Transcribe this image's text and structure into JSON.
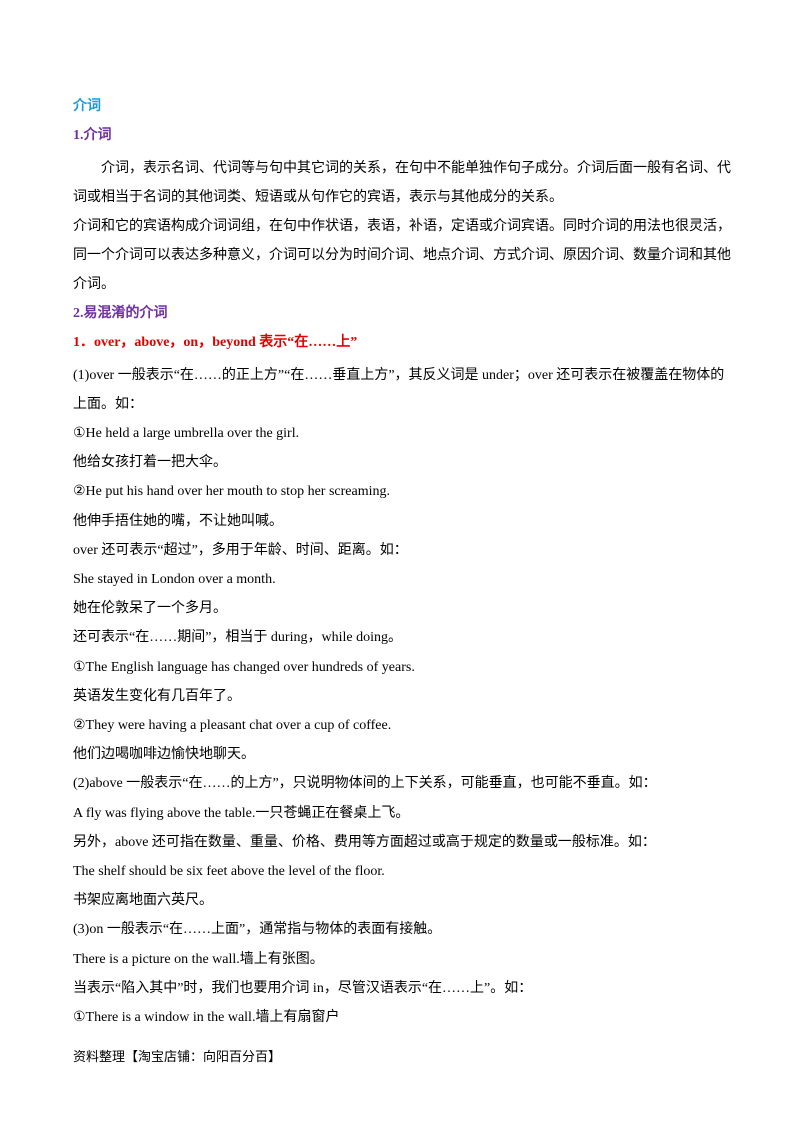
{
  "heading": "介词",
  "section1": {
    "title": "1.介词",
    "paragraphs": [
      "介词，表示名词、代词等与句中其它词的关系，在句中不能单独作句子成分。介词后面一般有名词、代词或相当于名词的其他词类、短语或从句作它的宾语，表示与其他成分的关系。",
      "介词和它的宾语构成介词词组，在句中作状语，表语，补语，定语或介词宾语。同时介词的用法也很灵活，同一个介词可以表达多种意义，介词可以分为时间介词、地点介词、方式介词、原因介词、数量介词和其他介词。"
    ]
  },
  "section2": {
    "title": "2.易混淆的介词",
    "subtitle": "1．over，above，on，beyond 表示“在……上”",
    "lines": [
      "(1)over 一般表示“在……的正上方”“在……垂直上方”，其反义词是 under；over 还可表示在被覆盖在物体的上面。如：",
      "①He held a large umbrella over the girl.",
      "他给女孩打着一把大伞。",
      "②He put his hand over her mouth to stop her screaming.",
      "他伸手捂住她的嘴，不让她叫喊。",
      "over 还可表示“超过”，多用于年龄、时间、距离。如：",
      "She stayed in London over a month.",
      "她在伦敦呆了一个多月。",
      "还可表示“在……期间”，相当于 during，while doing。",
      "①The English language has changed over hundreds of years.",
      "英语发生变化有几百年了。",
      "②They were having a pleasant chat over a cup of coffee.",
      "他们边喝咖啡边愉快地聊天。",
      "(2)above 一般表示“在……的上方”，只说明物体间的上下关系，可能垂直，也可能不垂直。如：",
      "A fly was flying above the table.一只苍蝇正在餐桌上飞。",
      "另外，above 还可指在数量、重量、价格、费用等方面超过或高于规定的数量或一般标准。如：",
      "The shelf should be six feet above the level of the floor.",
      "书架应离地面六英尺。",
      "(3)on 一般表示“在……上面”，通常指与物体的表面有接触。",
      "There is a picture on the wall.墙上有张图。",
      "当表示“陷入其中”时，我们也要用介词 in，尽管汉语表示“在……上”。如：",
      "①There is a window in the wall.墙上有扇窗户"
    ]
  },
  "footer": "资料整理【淘宝店铺：向阳百分百】"
}
